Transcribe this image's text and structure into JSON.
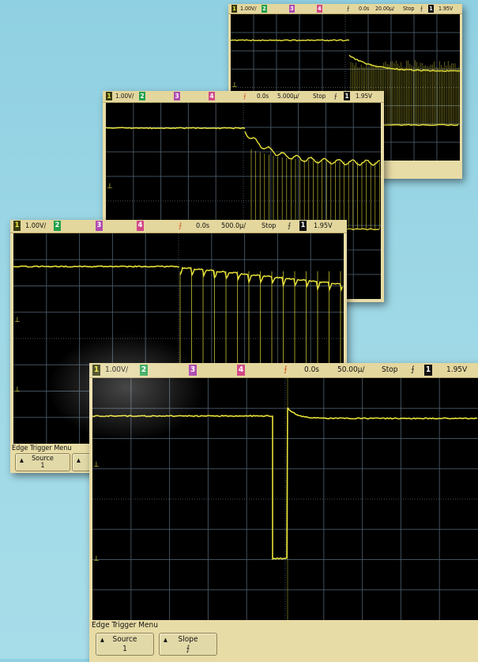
{
  "scope_small": {
    "status": {
      "channel_1": "1",
      "scale": "1.00V/",
      "channel_2": "2",
      "channel_3": "3",
      "channel_4": "4",
      "delay": "0.0s",
      "timebase": "20.00µ/",
      "run_state": "Stop",
      "trigger_source": "1",
      "trigger_level": "1.95V"
    }
  },
  "scope_medium": {
    "status": {
      "channel_1": "1",
      "scale": "1.00V/",
      "channel_2": "2",
      "channel_3": "3",
      "channel_4": "4",
      "delay": "0.0s",
      "timebase": "5.000µ/",
      "run_state": "Stop",
      "trigger_source": "1",
      "trigger_level": "1.95V"
    }
  },
  "scope_large": {
    "status": {
      "channel_1": "1",
      "scale": "1.00V/",
      "channel_2": "2",
      "channel_3": "3",
      "channel_4": "4",
      "delay": "0.0s",
      "timebase": "500.0µ/",
      "run_state": "Stop",
      "trigger_source": "1",
      "trigger_level": "1.95V"
    },
    "menu_title": "Edge Trigger Menu",
    "softkeys": [
      {
        "label": "Source",
        "value": "1"
      }
    ]
  },
  "scope_front": {
    "status": {
      "channel_1": "1",
      "scale": "1.00V/",
      "channel_2": "2",
      "channel_3": "3",
      "channel_4": "4",
      "delay": "0.0s",
      "timebase": "50.00µ/",
      "run_state": "Stop",
      "trigger_source": "1",
      "trigger_level": "1.95V"
    },
    "menu_title": "Edge Trigger Menu",
    "softkeys": [
      {
        "label": "Source",
        "value": "1"
      },
      {
        "label": "Slope",
        "value": "⨍"
      }
    ]
  },
  "colors": {
    "trace": "#e8e23a",
    "grid": "#4a5a66",
    "bezel": "#e8dca6",
    "channel_1": "#f0ec40",
    "channel_2": "#23a04a",
    "channel_3": "#b04ab0",
    "channel_4": "#d24a88",
    "trigger_marker": "#f07030",
    "background": "#9cd6e6"
  },
  "icons": {
    "trigger_slope": "rising-edge-icon",
    "trigger_marker": "trigger-position-icon",
    "ground_marker": "channel-1-ground-icon"
  }
}
